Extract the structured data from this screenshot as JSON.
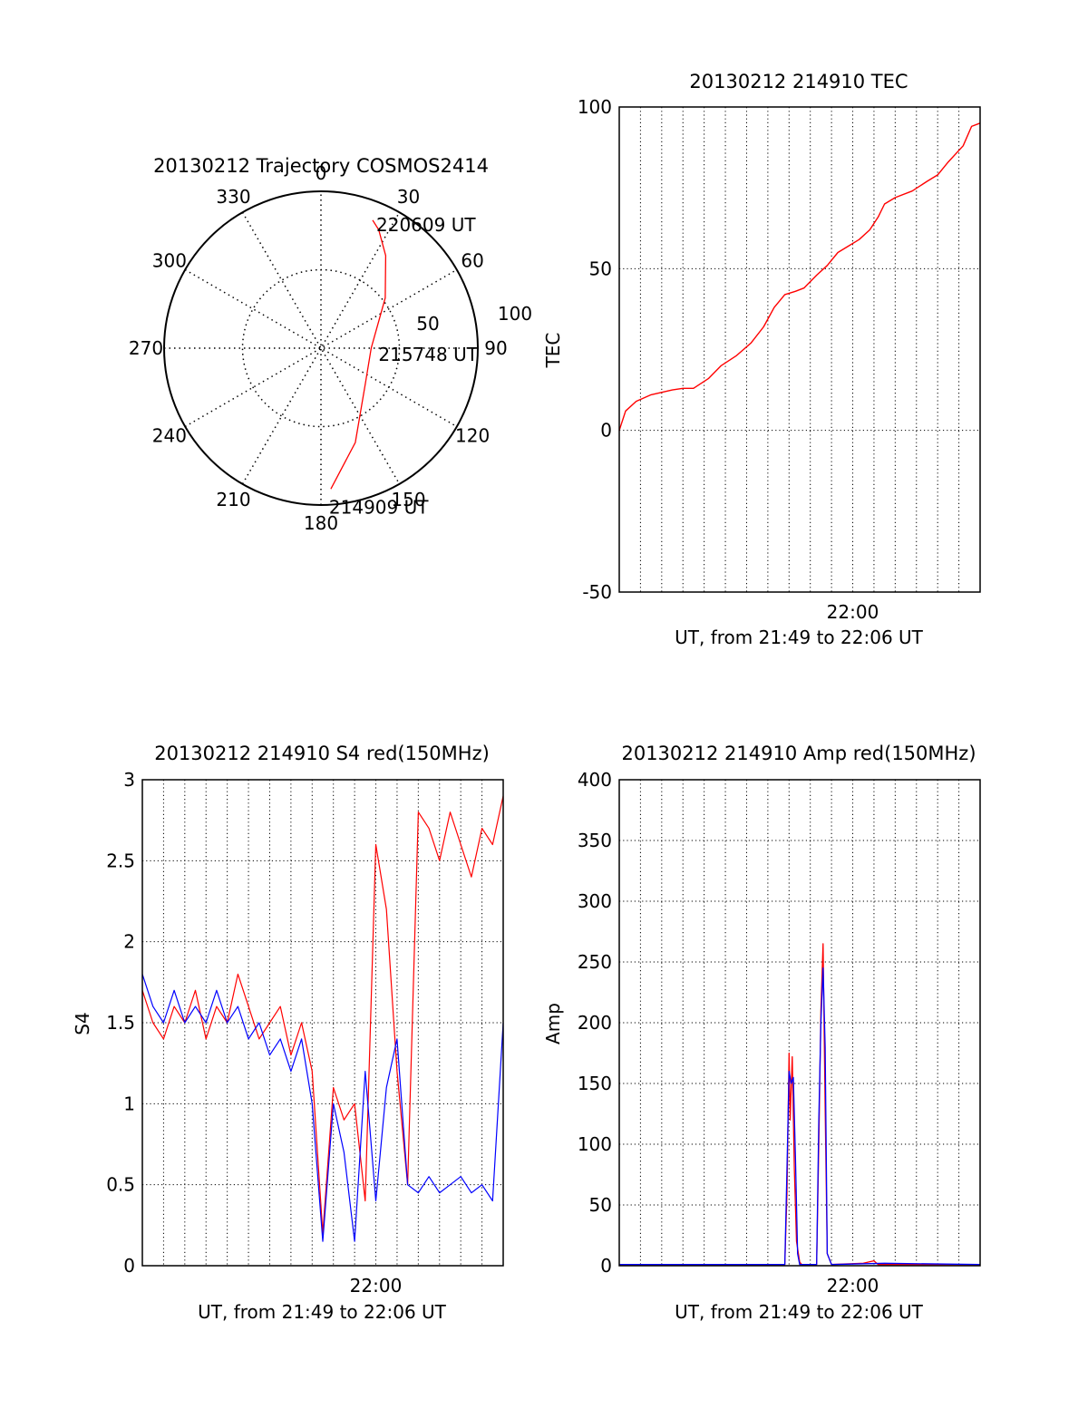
{
  "chart_data": [
    {
      "type": "polar",
      "title": "20130212 Trajectory COSMOS2414",
      "azimuth_labels": [
        "0",
        "30",
        "60",
        "90",
        "120",
        "150",
        "180",
        "210",
        "240",
        "270",
        "300",
        "330"
      ],
      "radial_labels": [
        "50",
        "100"
      ],
      "rlim": [
        0,
        100
      ],
      "grid": true,
      "series": [
        {
          "color": "#ff0000",
          "points": [
            {
              "az": 176,
              "r": 90,
              "time": "214909 UT"
            },
            {
              "az": 160,
              "r": 64
            },
            {
              "az": 128,
              "r": 36
            },
            {
              "az": 90,
              "r": 32,
              "time": "215748 UT"
            },
            {
              "az": 52,
              "r": 52
            },
            {
              "az": 35,
              "r": 72
            },
            {
              "az": 26,
              "r": 84
            },
            {
              "az": 22,
              "r": 88,
              "time": "220609 UT"
            }
          ]
        }
      ],
      "annotations": [
        "220609 UT",
        "215748 UT",
        "214909 UT"
      ]
    },
    {
      "type": "line",
      "title": "20130212 214910 TEC",
      "xlabel": "UT, from 21:49 to 22:06 UT",
      "ylabel": "TEC",
      "x_range_minutes": [
        0,
        17
      ],
      "xticks": [
        {
          "minute": 11,
          "label": "22:00"
        }
      ],
      "yticks": [
        "100",
        "50",
        "0",
        "-50"
      ],
      "ylim": [
        -50,
        100
      ],
      "grid": true,
      "series": [
        {
          "color": "#ff0000",
          "x_minutes": [
            0,
            0.3,
            0.8,
            1.5,
            2.5,
            3.0,
            3.5,
            4.2,
            4.8,
            5.5,
            6.2,
            6.8,
            7.3,
            7.8,
            8.3,
            8.7,
            9.3,
            9.8,
            10.3,
            10.8,
            11.3,
            11.8,
            12.2,
            12.5,
            13.0,
            13.8,
            14.5,
            15.0,
            15.5,
            16.2,
            16.6,
            17.0
          ],
          "y": [
            0,
            6,
            9,
            11,
            12.5,
            13,
            13,
            16,
            20,
            23,
            27,
            32,
            38,
            42,
            43,
            44,
            48,
            51,
            55,
            57,
            59,
            62,
            66,
            70,
            72,
            74,
            77,
            79,
            83,
            88,
            94,
            95
          ]
        }
      ]
    },
    {
      "type": "line",
      "title": "20130212 214910 S4 red(150MHz)",
      "xlabel": "UT, from 21:49 to 22:06 UT",
      "ylabel": "S4",
      "x_range_minutes": [
        0,
        17
      ],
      "xticks": [
        {
          "minute": 11,
          "label": "22:00"
        }
      ],
      "yticks": [
        "3",
        "2.5",
        "2",
        "1.5",
        "1",
        "0.5",
        "0"
      ],
      "ylim": [
        0,
        3
      ],
      "grid": true,
      "series": [
        {
          "color": "#ff0000",
          "x_minutes": [
            0.0,
            0.5,
            1.0,
            1.5,
            2.0,
            2.5,
            3.0,
            3.5,
            4.0,
            4.5,
            5.0,
            5.5,
            6.0,
            6.5,
            7.0,
            7.5,
            8.0,
            8.5,
            9.0,
            9.5,
            10.0,
            10.5,
            11.0,
            11.5,
            12.0,
            12.5,
            13.0,
            13.5,
            14.0,
            14.5,
            15.0,
            15.5,
            16.0,
            16.5,
            17.0
          ],
          "y": [
            1.7,
            1.5,
            1.4,
            1.6,
            1.5,
            1.7,
            1.4,
            1.6,
            1.5,
            1.8,
            1.6,
            1.4,
            1.5,
            1.6,
            1.3,
            1.5,
            1.2,
            0.2,
            1.1,
            0.9,
            1.0,
            0.4,
            2.6,
            2.2,
            1.2,
            0.5,
            2.8,
            2.7,
            2.5,
            2.8,
            2.6,
            2.4,
            2.7,
            2.6,
            2.9
          ]
        },
        {
          "color": "#0000ff",
          "x_minutes": [
            0.0,
            0.5,
            1.0,
            1.5,
            2.0,
            2.5,
            3.0,
            3.5,
            4.0,
            4.5,
            5.0,
            5.5,
            6.0,
            6.5,
            7.0,
            7.5,
            8.0,
            8.5,
            9.0,
            9.5,
            10.0,
            10.5,
            11.0,
            11.5,
            12.0,
            12.5,
            13.0,
            13.5,
            14.0,
            14.5,
            15.0,
            15.5,
            16.0,
            16.5,
            17.0
          ],
          "y": [
            1.8,
            1.6,
            1.5,
            1.7,
            1.5,
            1.6,
            1.5,
            1.7,
            1.5,
            1.6,
            1.4,
            1.5,
            1.3,
            1.4,
            1.2,
            1.4,
            1.0,
            0.15,
            1.0,
            0.7,
            0.15,
            1.2,
            0.4,
            1.1,
            1.4,
            0.5,
            0.45,
            0.55,
            0.45,
            0.5,
            0.55,
            0.45,
            0.5,
            0.4,
            1.5
          ]
        }
      ]
    },
    {
      "type": "line",
      "title": "20130212 214910 Amp red(150MHz)",
      "xlabel": "UT, from 21:49 to 22:06 UT",
      "ylabel": "Amp",
      "x_range_minutes": [
        0,
        17
      ],
      "xticks": [
        {
          "minute": 11,
          "label": "22:00"
        }
      ],
      "yticks": [
        "400",
        "350",
        "300",
        "250",
        "200",
        "150",
        "100",
        "50",
        "0"
      ],
      "ylim": [
        0,
        400
      ],
      "grid": true,
      "series": [
        {
          "color": "#ff0000",
          "x_minutes": [
            0,
            7.8,
            7.9,
            8.0,
            8.05,
            8.15,
            8.25,
            8.35,
            8.5,
            8.6,
            9.3,
            9.4,
            9.5,
            9.6,
            9.7,
            9.8,
            10.0,
            11.5,
            12.0,
            12.2,
            17.0
          ],
          "y": [
            1,
            1,
            60,
            175,
            120,
            172,
            80,
            20,
            3,
            1,
            1,
            100,
            210,
            265,
            130,
            10,
            1,
            2,
            4,
            1,
            1
          ]
        },
        {
          "color": "#0000ff",
          "x_minutes": [
            0,
            7.8,
            7.9,
            8.0,
            8.1,
            8.2,
            8.3,
            8.4,
            8.5,
            9.3,
            9.4,
            9.5,
            9.6,
            9.7,
            9.8,
            10.0,
            12.5,
            17.0
          ],
          "y": [
            1,
            1,
            80,
            160,
            150,
            155,
            90,
            10,
            1,
            1,
            120,
            200,
            245,
            180,
            10,
            1,
            2,
            1
          ]
        }
      ]
    }
  ]
}
